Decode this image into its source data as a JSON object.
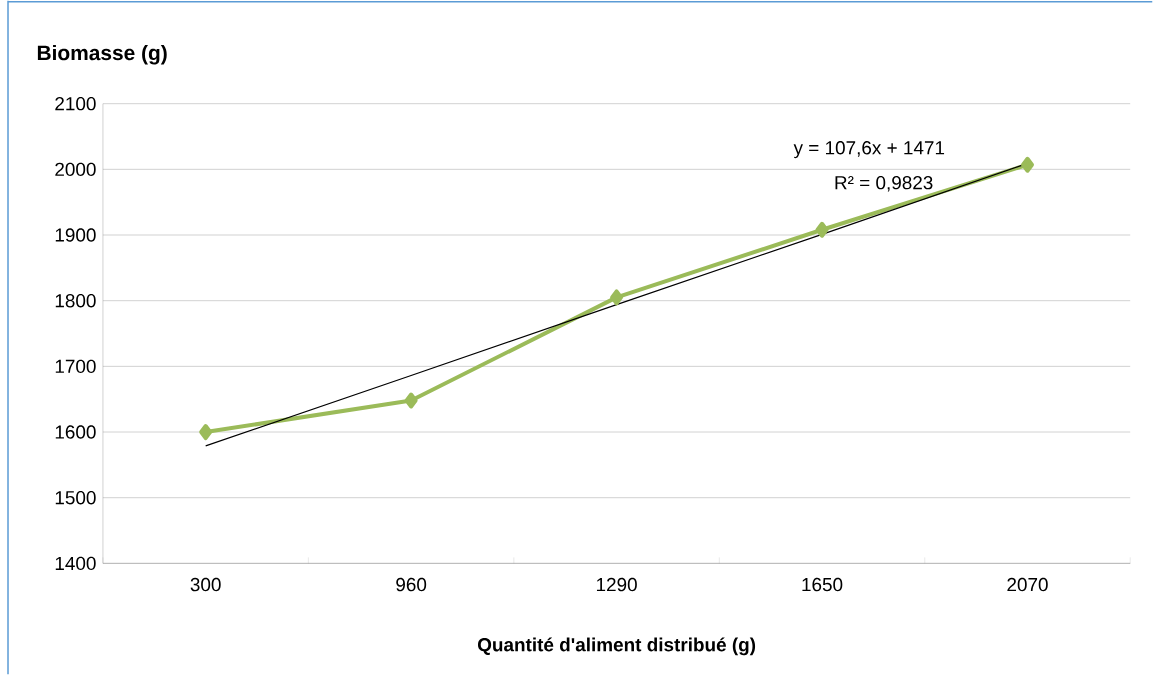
{
  "chart_data": {
    "type": "line",
    "ylabel": "Biomasse (g)",
    "xlabel": "Quantité d'aliment distribué (g)",
    "categories": [
      "300",
      "960",
      "1290",
      "1650",
      "2070"
    ],
    "series": [
      {
        "type": "line",
        "color": "#9bbb59",
        "marker": "diamond",
        "values": [
          1600,
          1648,
          1805,
          1908,
          2007
        ]
      },
      {
        "type": "line",
        "color": "#000000",
        "marker": "none",
        "values": [
          1579,
          1686,
          1794,
          1901,
          2009
        ]
      }
    ],
    "annotations": [
      "y = 107,6x + 1471",
      "R² = 0,9823"
    ],
    "ylim": [
      1400,
      2100
    ],
    "yticks": [
      1400,
      1500,
      1600,
      1700,
      1800,
      1900,
      2000,
      2100
    ],
    "grid": "y"
  }
}
